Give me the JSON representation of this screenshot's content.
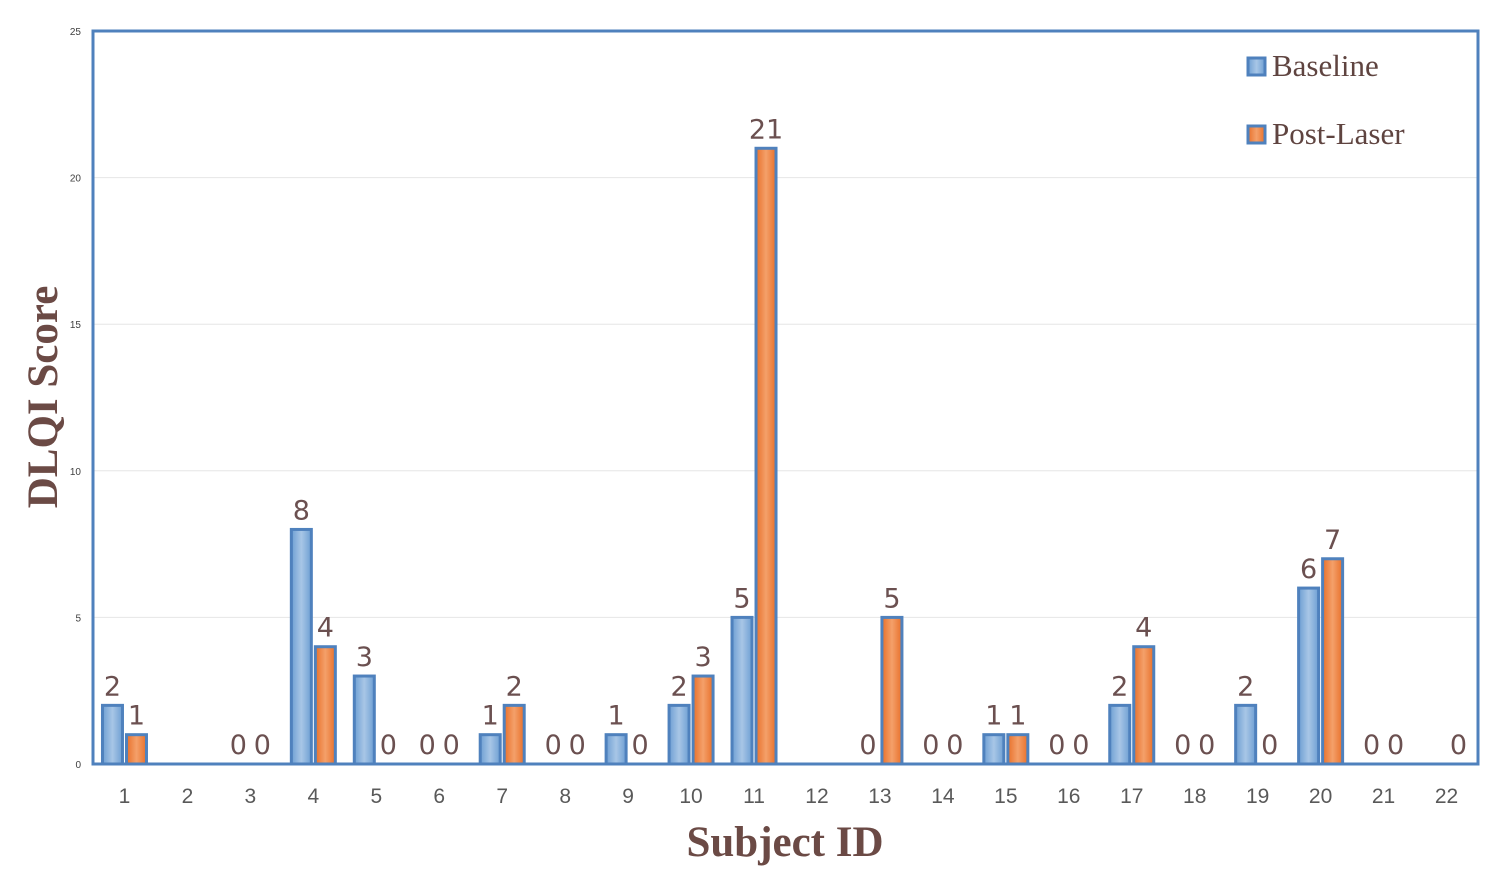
{
  "colors": {
    "baseline": "#8fb4dc",
    "baseline_edge": "#4f81bd",
    "post": "#f0843d",
    "post_edge": "#4f81bd",
    "frame": "#4f81bd",
    "grid": "#e6e6e6"
  },
  "chart_data": {
    "type": "bar",
    "xlabel": "Subject ID",
    "ylabel": "DLQI Score",
    "ylim": [
      0,
      25
    ],
    "yticks": [
      0,
      5,
      10,
      15,
      20,
      25
    ],
    "grid": true,
    "legend_position": "top-right",
    "categories": [
      "1",
      "2",
      "3",
      "4",
      "5",
      "6",
      "7",
      "8",
      "9",
      "10",
      "11",
      "12",
      "13",
      "14",
      "15",
      "16",
      "17",
      "18",
      "19",
      "20",
      "21",
      "22"
    ],
    "series": [
      {
        "name": "Baseline",
        "values": [
          2,
          null,
          0,
          8,
          3,
          0,
          1,
          0,
          1,
          2,
          5,
          null,
          0,
          0,
          1,
          0,
          2,
          0,
          2,
          6,
          0,
          null
        ]
      },
      {
        "name": "Post-Laser",
        "values": [
          1,
          null,
          0,
          4,
          0,
          0,
          2,
          0,
          0,
          3,
          21,
          null,
          5,
          0,
          1,
          0,
          4,
          0,
          0,
          7,
          0,
          0
        ]
      }
    ]
  }
}
